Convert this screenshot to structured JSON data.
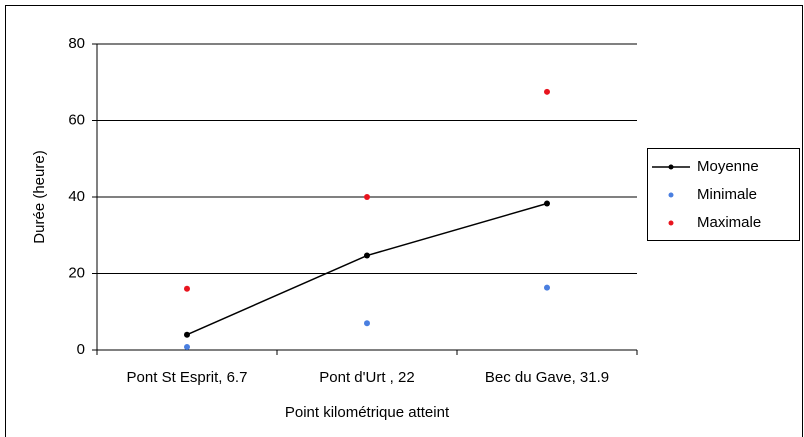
{
  "chart_data": {
    "type": "line",
    "x_label": "Point kilométrique atteint",
    "y_label": "Durée (heure)",
    "categories": [
      "Pont St Esprit, 6.7",
      "Pont d'Urt , 22",
      "Bec du Gave, 31.9"
    ],
    "series": [
      {
        "name": "Moyenne",
        "color": "#000000",
        "show_line": true,
        "values": [
          4,
          24.7,
          38.3
        ]
      },
      {
        "name": "Minimale",
        "color": "#4a7fe0",
        "show_line": false,
        "values": [
          0.8,
          7,
          16.3
        ]
      },
      {
        "name": "Maximale",
        "color": "#e8141e",
        "show_line": false,
        "values": [
          16,
          40,
          67.5
        ]
      }
    ],
    "ylim": [
      0,
      80
    ],
    "yticks": [
      0,
      20,
      40,
      60,
      80
    ],
    "grid": true,
    "legend": "right"
  }
}
